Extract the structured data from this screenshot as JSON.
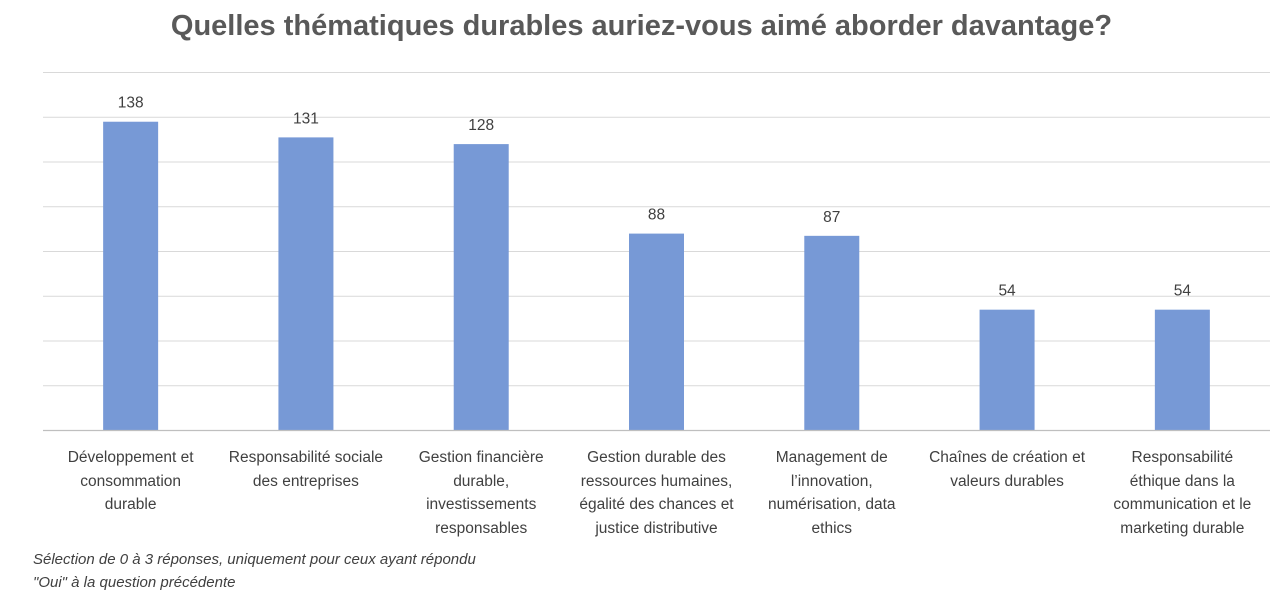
{
  "chart_data": {
    "type": "bar",
    "title": "Quelles thématiques durables auriez-vous aimé aborder davantage?",
    "categories": [
      "Développement et consommation durable",
      "Responsabilité sociale des entreprises",
      "Gestion financière durable, investissements responsables",
      "Gestion durable des ressources humaines, égalité des chances et justice distributive",
      "Management de l’innovation, numérisation, data ethics",
      "Chaînes de création et valeurs durables",
      "Responsabilité éthique dans la communication et le marketing durable"
    ],
    "category_lines": [
      [
        "Développement et",
        "consommation",
        "durable"
      ],
      [
        "Responsabilité sociale",
        "des entreprises"
      ],
      [
        "Gestion financière",
        "durable,",
        "investissements",
        "responsables"
      ],
      [
        "Gestion durable des",
        "ressources humaines,",
        "égalité des chances et",
        "justice distributive"
      ],
      [
        "Management de",
        "l’innovation,",
        "numérisation, data",
        "ethics"
      ],
      [
        "Chaînes de création et",
        "valeurs durables"
      ],
      [
        "Responsabilité",
        "éthique dans la",
        "communication et le",
        "marketing durable"
      ]
    ],
    "values": [
      138,
      131,
      128,
      88,
      87,
      54,
      54
    ],
    "ylim": [
      0,
      160
    ],
    "grid": true,
    "legend": "none",
    "xlabel": "",
    "ylabel": "",
    "bar_color": "#7799D6",
    "grid_color": "#D9D9D9",
    "axis_color": "#BFBFBF"
  },
  "footnote_lines": [
    "Sélection de 0 à 3 réponses, uniquement pour ceux ayant répondu",
    "\"Oui\" à la question précédente"
  ]
}
